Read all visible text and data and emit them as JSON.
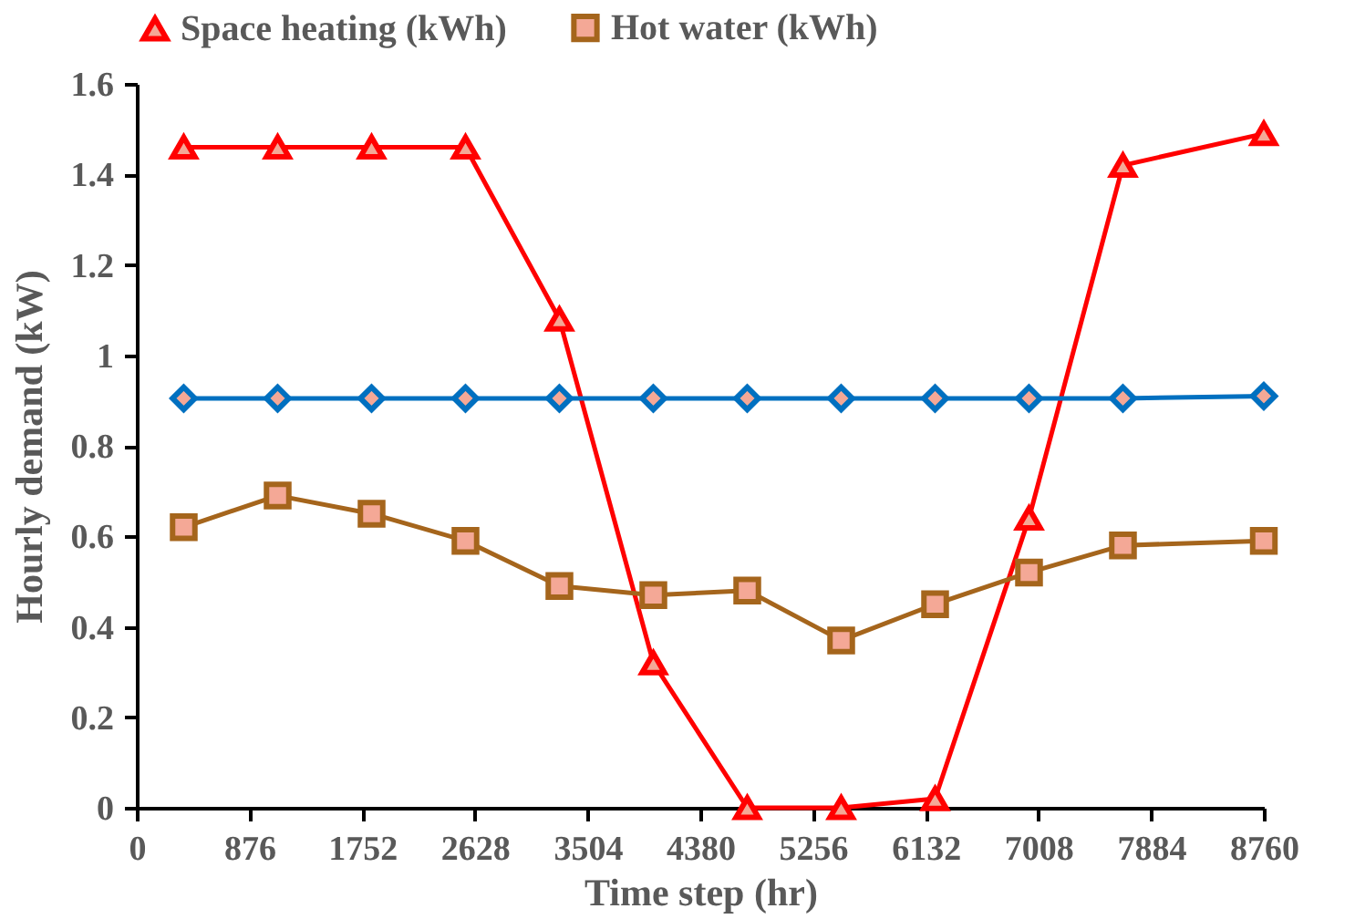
{
  "chart_data": {
    "type": "line",
    "xlabel": "Time step (hr)",
    "ylabel": "Hourly demand (kW)",
    "x": [
      365,
      1095,
      1825,
      2555,
      3285,
      4015,
      4745,
      5475,
      6205,
      6935,
      7665,
      8760
    ],
    "series": [
      {
        "name": "Space heating (kWh)",
        "color": "#ff0000",
        "marker": "triangle",
        "values": [
          1.46,
          1.46,
          1.46,
          1.46,
          1.08,
          0.32,
          0,
          0,
          0.02,
          0.64,
          1.42,
          1.49
        ]
      },
      {
        "name": "Hot water (kWh)",
        "color": "#a5651c",
        "marker": "square",
        "values": [
          0.62,
          0.69,
          0.65,
          0.59,
          0.49,
          0.47,
          0.48,
          0.37,
          0.45,
          0.52,
          0.58,
          0.59
        ]
      },
      {
        "color": "#0070c0",
        "marker": "diamond",
        "values": [
          0.905,
          0.905,
          0.905,
          0.905,
          0.905,
          0.905,
          0.905,
          0.905,
          0.905,
          0.905,
          0.905,
          0.91
        ]
      }
    ],
    "xlim": [
      0,
      8760
    ],
    "xticks": [
      0,
      876,
      1752,
      2628,
      3504,
      4380,
      5256,
      6132,
      7008,
      7884,
      8760
    ],
    "ylim": [
      0,
      1.6
    ],
    "yticks": [
      0,
      0.2,
      0.4,
      0.6,
      0.8,
      1,
      1.2,
      1.4,
      1.6
    ],
    "grid": false,
    "legend": "top"
  }
}
